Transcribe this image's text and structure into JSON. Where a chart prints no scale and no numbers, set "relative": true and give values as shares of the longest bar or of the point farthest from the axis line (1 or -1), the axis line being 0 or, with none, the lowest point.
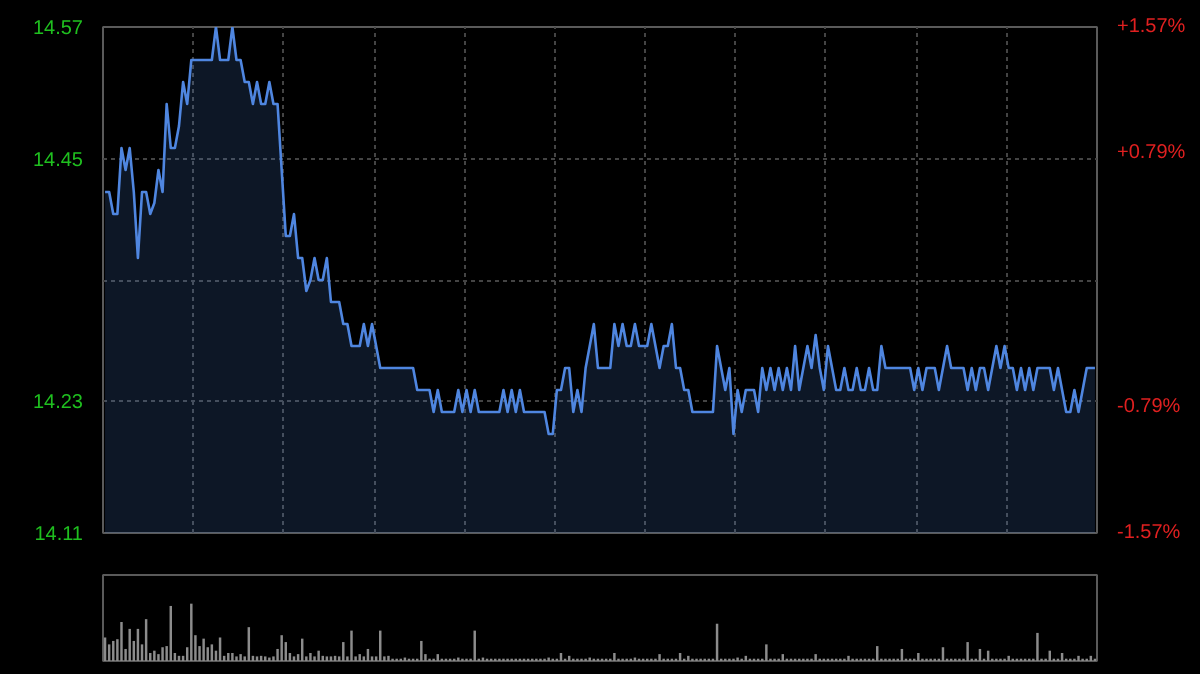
{
  "chart_data": [
    {
      "type": "area",
      "categories": [
        null,
        null,
        null,
        null,
        null,
        null,
        null,
        null,
        null,
        null,
        null,
        null,
        null,
        null,
        null,
        null,
        null,
        null,
        null,
        null,
        null,
        null,
        null,
        null,
        null,
        null,
        null,
        null,
        null,
        null,
        null,
        null,
        null,
        null,
        null,
        null,
        null,
        null,
        null,
        null,
        null,
        null,
        null,
        null,
        null,
        null,
        null,
        null,
        null,
        null,
        null,
        null,
        null,
        null,
        null,
        null,
        null,
        null,
        null,
        null,
        null,
        null,
        null,
        null,
        null,
        null,
        null,
        null,
        null,
        null,
        null,
        null,
        null,
        null,
        null,
        null,
        null,
        null,
        null,
        null,
        null,
        null,
        null,
        null,
        null,
        null,
        null,
        null,
        null,
        null,
        null,
        null,
        null,
        null,
        null,
        null,
        null,
        null,
        null,
        null,
        null,
        null,
        null,
        null,
        null,
        null,
        null,
        null,
        null,
        null,
        null,
        null,
        null,
        null,
        null,
        null,
        null,
        null,
        null,
        null,
        null,
        null,
        null,
        null,
        null,
        null,
        null,
        null,
        null,
        null,
        null,
        null,
        null,
        null,
        null,
        null,
        null,
        null,
        null,
        null,
        null,
        null,
        null,
        null,
        null,
        null,
        null,
        null,
        null,
        null,
        null,
        null,
        null,
        null,
        null,
        null,
        null,
        null,
        null,
        null,
        null,
        null,
        null,
        null,
        null,
        null,
        null,
        null,
        null,
        null,
        null,
        null,
        null,
        null,
        null,
        null,
        null,
        null,
        null,
        null,
        null,
        null,
        null,
        null,
        null,
        null,
        null,
        null,
        null,
        null,
        null,
        null,
        null,
        null,
        null,
        null,
        null,
        null,
        null,
        null,
        null,
        null,
        null,
        null,
        null,
        null,
        null,
        null,
        null,
        null,
        null,
        null,
        null,
        null,
        null,
        null,
        null,
        null,
        null,
        null,
        null,
        null,
        null,
        null,
        null,
        null,
        null,
        null,
        null,
        null,
        null,
        null,
        null,
        null,
        null,
        null,
        null,
        null,
        null,
        null,
        null,
        null
      ],
      "ylim": [
        14.11,
        14.57
      ],
      "yticks": [
        14.11,
        14.23,
        {
          "value": 14.34,
          "label": null
        },
        14.45,
        14.57
      ],
      "y2lim": [
        -1.57,
        1.57
      ],
      "y2ticks": [
        {
          "value": -1.57,
          "label": "-1.57%"
        },
        {
          "value": -0.79,
          "label": "-0.79%"
        },
        {
          "value": 0.79,
          "label": "+0.79%"
        },
        {
          "value": 1.57,
          "label": "+1.57%"
        }
      ],
      "grid": true,
      "series": [
        {
          "color": "#4f86e0",
          "values": [
            14.42,
            14.42,
            14.4,
            14.4,
            14.46,
            14.44,
            14.46,
            14.42,
            14.36,
            14.42,
            14.42,
            14.4,
            14.41,
            14.44,
            14.42,
            14.5,
            14.46,
            14.46,
            14.48,
            14.52,
            14.5,
            14.54,
            14.54,
            14.54,
            14.54,
            14.54,
            14.54,
            14.57,
            14.54,
            14.54,
            14.54,
            14.57,
            14.54,
            14.54,
            14.52,
            14.52,
            14.5,
            14.52,
            14.5,
            14.5,
            14.52,
            14.5,
            14.5,
            14.44,
            14.38,
            14.38,
            14.4,
            14.36,
            14.36,
            14.33,
            14.34,
            14.36,
            14.34,
            14.34,
            14.36,
            14.32,
            14.32,
            14.32,
            14.3,
            14.3,
            14.28,
            14.28,
            14.28,
            14.3,
            14.28,
            14.3,
            14.28,
            14.26,
            14.26,
            14.26,
            14.26,
            14.26,
            14.26,
            14.26,
            14.26,
            14.26,
            14.24,
            14.24,
            14.24,
            14.24,
            14.22,
            14.24,
            14.22,
            14.22,
            14.22,
            14.22,
            14.24,
            14.22,
            14.24,
            14.22,
            14.24,
            14.22,
            14.22,
            14.22,
            14.22,
            14.22,
            14.22,
            14.24,
            14.22,
            14.24,
            14.22,
            14.24,
            14.22,
            14.22,
            14.22,
            14.22,
            14.22,
            14.22,
            14.2,
            14.2,
            14.24,
            14.24,
            14.26,
            14.26,
            14.22,
            14.24,
            14.22,
            14.26,
            14.28,
            14.3,
            14.26,
            14.26,
            14.26,
            14.26,
            14.3,
            14.28,
            14.3,
            14.28,
            14.28,
            14.3,
            14.28,
            14.28,
            14.28,
            14.3,
            14.28,
            14.26,
            14.28,
            14.28,
            14.3,
            14.26,
            14.26,
            14.24,
            14.24,
            14.22,
            14.22,
            14.22,
            14.22,
            14.22,
            14.22,
            14.28,
            14.26,
            14.24,
            14.26,
            14.2,
            14.24,
            14.22,
            14.24,
            14.24,
            14.24,
            14.22,
            14.26,
            14.24,
            14.26,
            14.24,
            14.26,
            14.24,
            14.26,
            14.24,
            14.28,
            14.24,
            14.26,
            14.28,
            14.26,
            14.29,
            14.26,
            14.24,
            14.28,
            14.26,
            14.24,
            14.24,
            14.26,
            14.24,
            14.24,
            14.26,
            14.24,
            14.24,
            14.26,
            14.24,
            14.24,
            14.28,
            14.26,
            14.26,
            14.26,
            14.26,
            14.26,
            14.26,
            14.26,
            14.24,
            14.26,
            14.24,
            14.26,
            14.26,
            14.26,
            14.24,
            14.26,
            14.28,
            14.26,
            14.26,
            14.26,
            14.26,
            14.24,
            14.26,
            14.24,
            14.26,
            14.26,
            14.24,
            14.26,
            14.28,
            14.26,
            14.28,
            14.26,
            14.26,
            14.24,
            14.26,
            14.24,
            14.26,
            14.24,
            14.26,
            14.26,
            14.26,
            14.26,
            14.24,
            14.26,
            14.24,
            14.22,
            14.22,
            14.24,
            14.22,
            14.24,
            14.26,
            14.26,
            14.26
          ]
        }
      ]
    },
    {
      "type": "bar",
      "relative": true,
      "color": "#8c8c8c",
      "categories": [
        null,
        null,
        null,
        null,
        null,
        null,
        null,
        null,
        null,
        null,
        null,
        null,
        null,
        null,
        null,
        null,
        null,
        null,
        null,
        null,
        null,
        null,
        null,
        null,
        null,
        null,
        null,
        null,
        null,
        null,
        null,
        null,
        null,
        null,
        null,
        null,
        null,
        null,
        null,
        null,
        null,
        null,
        null,
        null,
        null,
        null,
        null,
        null,
        null,
        null,
        null,
        null,
        null,
        null,
        null,
        null,
        null,
        null,
        null,
        null,
        null,
        null,
        null,
        null,
        null,
        null,
        null,
        null,
        null,
        null,
        null,
        null,
        null,
        null,
        null,
        null,
        null,
        null,
        null,
        null,
        null,
        null,
        null,
        null,
        null,
        null,
        null,
        null,
        null,
        null,
        null,
        null,
        null,
        null,
        null,
        null,
        null,
        null,
        null,
        null,
        null,
        null,
        null,
        null,
        null,
        null,
        null,
        null,
        null,
        null,
        null,
        null,
        null,
        null,
        null,
        null,
        null,
        null,
        null,
        null,
        null,
        null,
        null,
        null,
        null,
        null,
        null,
        null,
        null,
        null,
        null,
        null,
        null,
        null,
        null,
        null,
        null,
        null,
        null,
        null,
        null,
        null,
        null,
        null,
        null,
        null,
        null,
        null,
        null,
        null,
        null,
        null,
        null,
        null,
        null,
        null,
        null,
        null,
        null,
        null,
        null,
        null,
        null,
        null,
        null,
        null,
        null,
        null,
        null,
        null,
        null,
        null,
        null,
        null,
        null,
        null,
        null,
        null,
        null,
        null,
        null,
        null,
        null,
        null,
        null,
        null,
        null,
        null,
        null,
        null,
        null,
        null,
        null,
        null,
        null,
        null,
        null,
        null,
        null,
        null,
        null,
        null,
        null,
        null,
        null,
        null,
        null,
        null,
        null,
        null,
        null,
        null,
        null,
        null,
        null,
        null,
        null,
        null,
        null,
        null,
        null,
        null,
        null,
        null,
        null,
        null,
        null,
        null,
        null,
        null,
        null,
        null,
        null,
        null,
        null,
        null,
        null,
        null,
        null,
        null,
        null,
        null
      ],
      "values": [
        0.41,
        0.29,
        0.35,
        0.38,
        0.68,
        0.21,
        0.56,
        0.35,
        0.56,
        0.29,
        0.73,
        0.14,
        0.18,
        0.12,
        0.24,
        0.26,
        0.96,
        0.14,
        0.09,
        0.09,
        0.24,
        1,
        0.45,
        0.26,
        0.39,
        0.24,
        0.29,
        0.18,
        0.41,
        0.09,
        0.14,
        0.14,
        0.08,
        0.12,
        0.08,
        0.59,
        0.09,
        0.08,
        0.09,
        0.08,
        0.06,
        0.08,
        0.21,
        0.45,
        0.33,
        0.14,
        0.08,
        0.12,
        0.39,
        0.08,
        0.14,
        0.08,
        0.18,
        0.09,
        0.08,
        0.08,
        0.09,
        0.08,
        0.33,
        0.08,
        0.53,
        0.08,
        0.12,
        0.08,
        0.21,
        0.08,
        0.08,
        0.53,
        0.08,
        0.09,
        0.04,
        0.04,
        0.04,
        0.06,
        0.04,
        0.04,
        0.04,
        0.35,
        0.12,
        0.04,
        0.04,
        0.12,
        0.04,
        0.04,
        0.04,
        0.04,
        0.06,
        0.04,
        0.04,
        0.04,
        0.53,
        0.04,
        0.06,
        0.04,
        0.04,
        0.04,
        0.04,
        0.04,
        0.04,
        0.04,
        0.04,
        0.04,
        0.04,
        0.04,
        0.04,
        0.04,
        0.04,
        0.04,
        0.06,
        0.04,
        0.04,
        0.14,
        0.04,
        0.09,
        0.04,
        0.04,
        0.04,
        0.04,
        0.06,
        0.04,
        0.04,
        0.04,
        0.04,
        0.04,
        0.14,
        0.04,
        0.04,
        0.04,
        0.04,
        0.06,
        0.04,
        0.04,
        0.04,
        0.04,
        0.04,
        0.12,
        0.04,
        0.04,
        0.04,
        0.04,
        0.14,
        0.04,
        0.09,
        0.04,
        0.04,
        0.04,
        0.04,
        0.04,
        0.04,
        0.65,
        0.04,
        0.04,
        0.04,
        0.04,
        0.06,
        0.04,
        0.09,
        0.04,
        0.04,
        0.04,
        0.04,
        0.29,
        0.04,
        0.04,
        0.04,
        0.12,
        0.04,
        0.04,
        0.04,
        0.04,
        0.04,
        0.04,
        0.04,
        0.12,
        0.04,
        0.04,
        0.04,
        0.04,
        0.04,
        0.04,
        0.04,
        0.09,
        0.04,
        0.04,
        0.04,
        0.04,
        0.04,
        0.04,
        0.26,
        0.04,
        0.04,
        0.04,
        0.04,
        0.04,
        0.21,
        0.04,
        0.04,
        0.04,
        0.14,
        0.04,
        0.04,
        0.04,
        0.04,
        0.04,
        0.24,
        0.04,
        0.04,
        0.04,
        0.04,
        0.04,
        0.33,
        0.04,
        0.04,
        0.21,
        0.04,
        0.18,
        0.04,
        0.04,
        0.04,
        0.04,
        0.09,
        0.04,
        0.04,
        0.04,
        0.04,
        0.04,
        0.04,
        0.49,
        0.04,
        0.04,
        0.18,
        0.04,
        0.04,
        0.14,
        0.04,
        0.04,
        0.04,
        0.09,
        0.04,
        0.04,
        0.09,
        0.04
      ]
    }
  ]
}
